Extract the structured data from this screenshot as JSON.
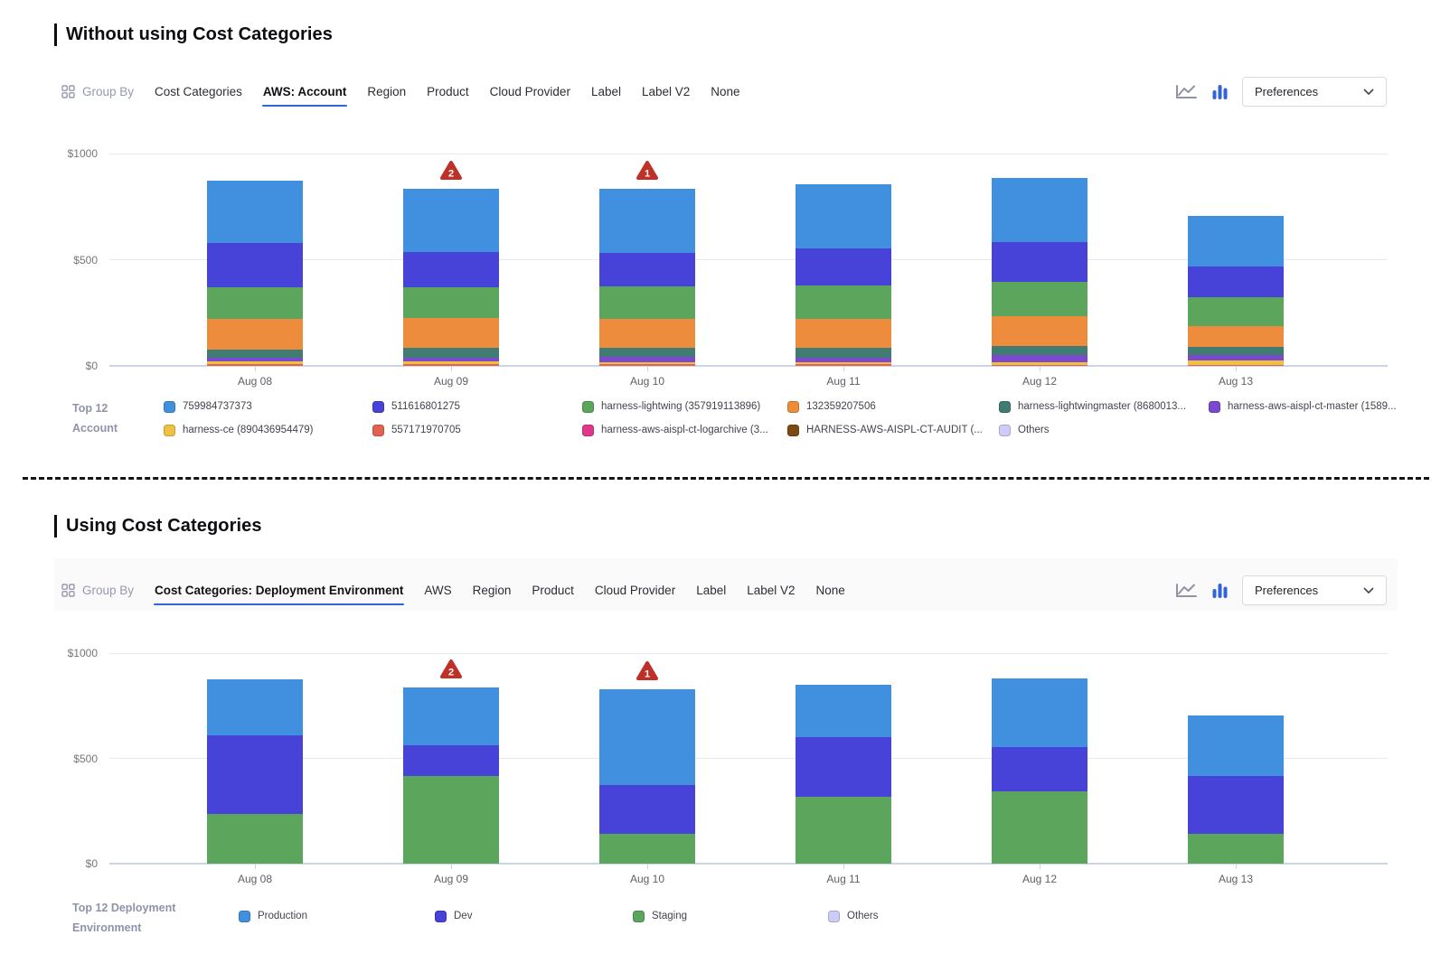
{
  "sections": [
    {
      "title": "Without using Cost Categories",
      "toolbar": {
        "group_by_label": "Group By",
        "tabs": [
          {
            "label": "Cost Categories",
            "active": false
          },
          {
            "label": "AWS: Account",
            "active": true
          },
          {
            "label": "Region",
            "active": false
          },
          {
            "label": "Product",
            "active": false
          },
          {
            "label": "Cloud Provider",
            "active": false
          },
          {
            "label": "Label",
            "active": false
          },
          {
            "label": "Label V2",
            "active": false
          },
          {
            "label": "None",
            "active": false
          }
        ],
        "view_toggles": [
          {
            "icon": "line-chart-icon",
            "active": false
          },
          {
            "icon": "bar-chart-icon",
            "active": true
          }
        ],
        "preferences_label": "Preferences"
      },
      "legend_title_lines": [
        "Top 12",
        "Account"
      ]
    },
    {
      "title": "Using Cost Categories",
      "toolbar": {
        "group_by_label": "Group By",
        "tabs": [
          {
            "label": "Cost Categories: Deployment Environment",
            "active": true
          },
          {
            "label": "AWS",
            "active": false
          },
          {
            "label": "Region",
            "active": false
          },
          {
            "label": "Product",
            "active": false
          },
          {
            "label": "Cloud Provider",
            "active": false
          },
          {
            "label": "Label",
            "active": false
          },
          {
            "label": "Label V2",
            "active": false
          },
          {
            "label": "None",
            "active": false
          }
        ],
        "view_toggles": [
          {
            "icon": "line-chart-icon",
            "active": false
          },
          {
            "icon": "bar-chart-icon",
            "active": true
          }
        ],
        "preferences_label": "Preferences"
      },
      "legend_title_lines": [
        "Top 12 Deployment",
        "Environment"
      ]
    }
  ],
  "chart_data": [
    {
      "type": "bar",
      "stacked": true,
      "title": "Daily cost grouped by AWS: Account",
      "categories": [
        "Aug 08",
        "Aug 09",
        "Aug 10",
        "Aug 11",
        "Aug 12",
        "Aug 13"
      ],
      "ylim": [
        0,
        1000
      ],
      "y_ticks": [
        {
          "label": "$0",
          "value": 0
        },
        {
          "label": "$500",
          "value": 500
        },
        {
          "label": "$1000",
          "value": 1000
        }
      ],
      "grid": "horizontal",
      "legend_position": "bottom",
      "stack_order": "first series on top, last at bottom",
      "series": [
        {
          "name": "759984737373",
          "color": "#4190E0",
          "values": [
            295,
            300,
            301,
            302,
            302,
            241
          ]
        },
        {
          "name": "511616801275",
          "color": "#4742D8",
          "values": [
            205,
            166,
            158,
            172,
            186,
            143
          ]
        },
        {
          "name": "harness-lightwing (357919113896)",
          "color": "#5CA55C",
          "values": [
            150,
            144,
            153,
            158,
            163,
            134
          ]
        },
        {
          "name": "132359207506",
          "color": "#EE8C3E",
          "values": [
            145,
            139,
            134,
            136,
            139,
            100
          ]
        },
        {
          "name": "harness-lightwingmaster (8680013...",
          "color": "#417C73",
          "values": [
            39,
            46,
            44,
            48,
            40,
            39
          ]
        },
        {
          "name": "harness-aws-aispl-ct-master (1589...",
          "color": "#7B49CD",
          "values": [
            17,
            20,
            26,
            22,
            38,
            23
          ]
        },
        {
          "name": "harness-ce (890436954479)",
          "color": "#F0C140",
          "values": [
            12,
            12,
            9,
            9,
            10,
            24
          ]
        },
        {
          "name": "557171970705",
          "color": "#E26250",
          "values": [
            9,
            8,
            7,
            7,
            5,
            3
          ]
        },
        {
          "name": "harness-aws-aispl-ct-logarchive (3...",
          "color": "#E0378C",
          "values": [
            0,
            0,
            0,
            0,
            0,
            0
          ]
        },
        {
          "name": "HARNESS-AWS-AISPL-CT-AUDIT (...",
          "color": "#7D4812",
          "values": [
            0,
            0,
            0,
            0,
            0,
            0
          ]
        },
        {
          "name": "Others",
          "color": "#CDCBF8",
          "values": [
            0,
            0,
            0,
            0,
            0,
            0
          ]
        }
      ],
      "anomalies": [
        {
          "category": "Aug 09",
          "count": "2"
        },
        {
          "category": "Aug 10",
          "count": "1"
        }
      ]
    },
    {
      "type": "bar",
      "stacked": true,
      "title": "Daily cost grouped by Cost Categories: Deployment Environment",
      "categories": [
        "Aug 08",
        "Aug 09",
        "Aug 10",
        "Aug 11",
        "Aug 12",
        "Aug 13"
      ],
      "ylim": [
        0,
        1000
      ],
      "y_ticks": [
        {
          "label": "$0",
          "value": 0
        },
        {
          "label": "$500",
          "value": 500
        },
        {
          "label": "$1000",
          "value": 1000
        }
      ],
      "grid": "horizontal",
      "legend_position": "bottom",
      "stack_order": "first series on top, last at bottom",
      "series": [
        {
          "name": "Production",
          "color": "#4190E0",
          "values": [
            266,
            273,
            456,
            252,
            328,
            287
          ]
        },
        {
          "name": "Dev",
          "color": "#4742D8",
          "values": [
            373,
            146,
            230,
            280,
            208,
            274
          ]
        },
        {
          "name": "Staging",
          "color": "#5CA55C",
          "values": [
            237,
            417,
            143,
            319,
            345,
            143
          ]
        },
        {
          "name": "Others",
          "color": "#CDCBF8",
          "values": [
            0,
            0,
            0,
            0,
            0,
            0
          ]
        }
      ],
      "anomalies": [
        {
          "category": "Aug 09",
          "count": "2"
        },
        {
          "category": "Aug 10",
          "count": "1"
        }
      ]
    }
  ],
  "colors": {
    "accent_blue": "#3263D9",
    "anomaly_red": "#BE3128",
    "axis_line": "#CBD5EA",
    "grid_line": "#E9E9EC"
  }
}
